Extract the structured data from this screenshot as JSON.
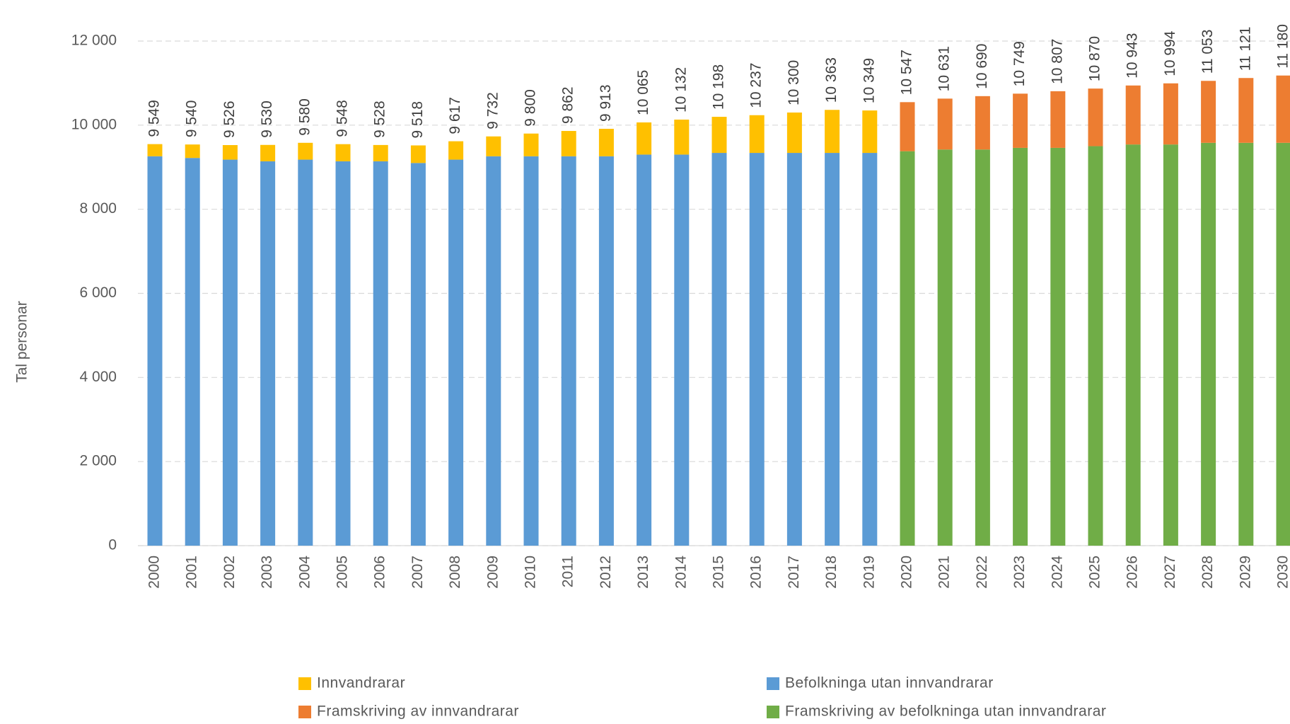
{
  "chart_data": {
    "type": "stacked_bar",
    "y_label": "Tal personar",
    "categories": [
      "2000",
      "2001",
      "2002",
      "2003",
      "2004",
      "2005",
      "2006",
      "2007",
      "2008",
      "2009",
      "2010",
      "2011",
      "2012",
      "2013",
      "2014",
      "2015",
      "2016",
      "2017",
      "2018",
      "2019",
      "2020",
      "2021",
      "2022",
      "2023",
      "2024",
      "2025",
      "2026",
      "2027",
      "2028",
      "2029",
      "2030"
    ],
    "series": [
      {
        "name": "Befolkninga utan innvandrarar",
        "color": "#5b9bd5",
        "values": [
          9260,
          9220,
          9180,
          9140,
          9180,
          9140,
          9140,
          9100,
          9180,
          9260,
          9260,
          9260,
          9260,
          9300,
          9300,
          9340,
          9340,
          9340,
          9340,
          9340,
          null,
          null,
          null,
          null,
          null,
          null,
          null,
          null,
          null,
          null,
          null
        ]
      },
      {
        "name": "Innvandrarar",
        "color": "#ffc000",
        "values": [
          289,
          320,
          346,
          390,
          400,
          408,
          388,
          418,
          437,
          472,
          540,
          602,
          653,
          765,
          832,
          858,
          897,
          960,
          1023,
          1009,
          null,
          null,
          null,
          null,
          null,
          null,
          null,
          null,
          null,
          null,
          null
        ]
      },
      {
        "name": "Framskriving av befolkninga utan innvandrarar",
        "color": "#70ad47",
        "values": [
          null,
          null,
          null,
          null,
          null,
          null,
          null,
          null,
          null,
          null,
          null,
          null,
          null,
          null,
          null,
          null,
          null,
          null,
          null,
          null,
          9380,
          9420,
          9420,
          9460,
          9460,
          9500,
          9540,
          9540,
          9580,
          9580,
          9580
        ]
      },
      {
        "name": "Framskriving av innvandrarar",
        "color": "#ed7d31",
        "values": [
          null,
          null,
          null,
          null,
          null,
          null,
          null,
          null,
          null,
          null,
          null,
          null,
          null,
          null,
          null,
          null,
          null,
          null,
          null,
          null,
          1167,
          1211,
          1270,
          1289,
          1347,
          1370,
          1403,
          1454,
          1473,
          1541,
          1600
        ]
      }
    ],
    "totals": {
      "values": [
        9549,
        9540,
        9526,
        9530,
        9580,
        9548,
        9528,
        9518,
        9617,
        9732,
        9800,
        9862,
        9913,
        10065,
        10132,
        10198,
        10237,
        10300,
        10363,
        10349,
        10547,
        10631,
        10690,
        10749,
        10807,
        10870,
        10943,
        10994,
        11053,
        11121,
        11180
      ],
      "value_labels": [
        "9 549",
        "9 540",
        "9 526",
        "9 530",
        "9 580",
        "9 548",
        "9 528",
        "9 518",
        "9 617",
        "9 732",
        "9 800",
        "9 862",
        "9 913",
        "10 065",
        "10 132",
        "10 198",
        "10 237",
        "10 300",
        "10 363",
        "10 349",
        "10 547",
        "10 631",
        "10 690",
        "10 749",
        "10 807",
        "10 870",
        "10 943",
        "10 994",
        "11 053",
        "11 121",
        "11 180"
      ]
    },
    "ylim": [
      0,
      12000
    ],
    "yticks": [
      0,
      {
        "value": 2000,
        "label": "2 000"
      },
      {
        "value": 4000,
        "label": "4 000"
      },
      {
        "value": 6000,
        "label": "6 000"
      },
      {
        "value": 8000,
        "label": "8 000"
      },
      {
        "value": 10000,
        "label": "10 000"
      },
      {
        "value": 12000,
        "label": "12 000"
      }
    ],
    "grid": true
  }
}
